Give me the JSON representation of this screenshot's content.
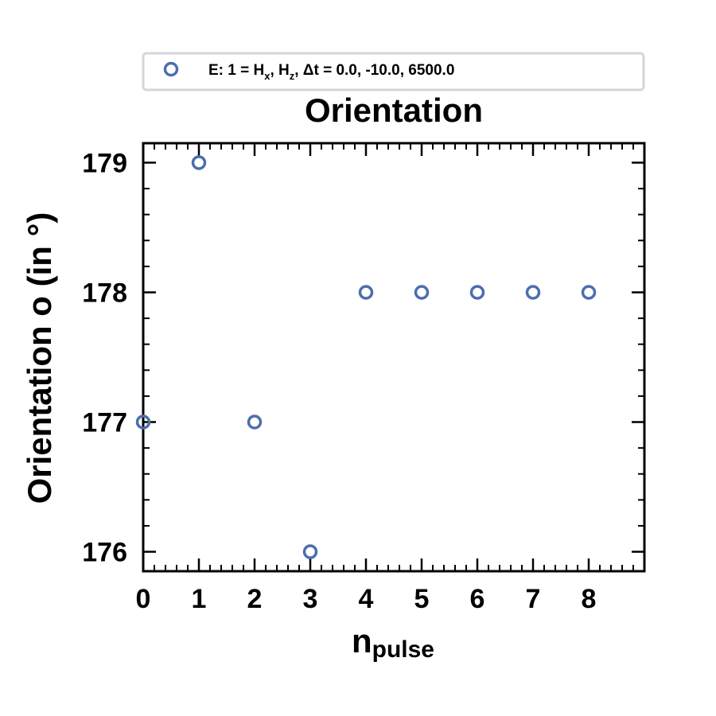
{
  "chart_data": {
    "type": "scatter",
    "title": "Orientation",
    "xlabel": {
      "main": "n",
      "sub": "pulse"
    },
    "ylabel": "Orientation o (in °)",
    "xlim": [
      0,
      9
    ],
    "ylim": [
      175.85,
      179.15
    ],
    "xticks": [
      0,
      1,
      2,
      3,
      4,
      5,
      6,
      7,
      8
    ],
    "yticks": [
      176,
      177,
      178,
      179
    ],
    "legend_position": "above plot",
    "series": [
      {
        "name": "E: 1 = Hx, Hz, Δt =  0.0, -10.0, 6500.0",
        "color": "#4c6ead",
        "marker": "open-circle",
        "points": [
          {
            "x": 0,
            "y": 177
          },
          {
            "x": 1,
            "y": 179
          },
          {
            "x": 2,
            "y": 177
          },
          {
            "x": 3,
            "y": 176
          },
          {
            "x": 4,
            "y": 178
          },
          {
            "x": 5,
            "y": 178
          },
          {
            "x": 6,
            "y": 178
          },
          {
            "x": 7,
            "y": 178
          },
          {
            "x": 8,
            "y": 178
          }
        ]
      }
    ]
  },
  "legend": {
    "label_prefix": "E: 1 = H",
    "sub1": "x",
    "mid": ", H",
    "sub2": "z",
    "suffix": ", Δt =  0.0, -10.0, 6500.0"
  }
}
